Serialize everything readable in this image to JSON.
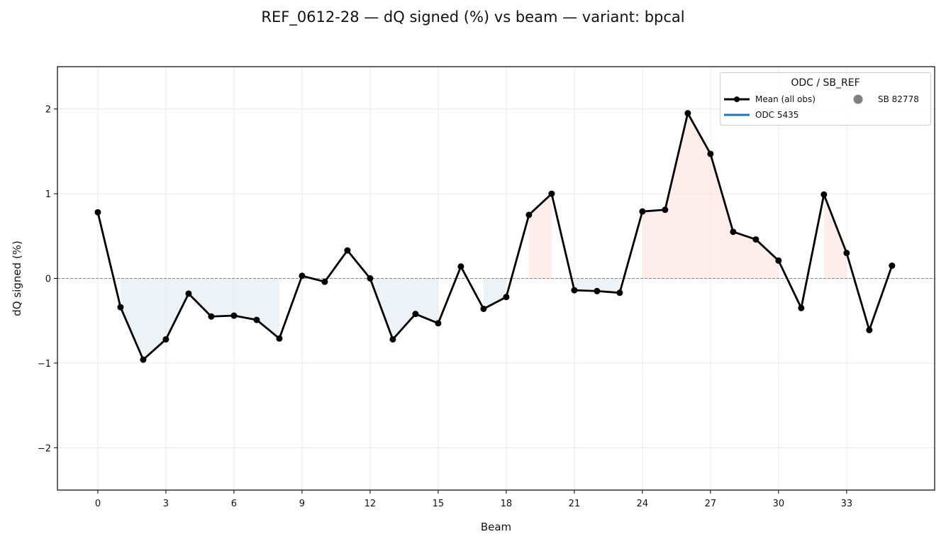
{
  "chart_data": {
    "type": "line",
    "title": "REF_0612-28  —  dQ signed (%) vs beam  —  variant: bpcal",
    "xlabel": "Beam",
    "ylabel": "dQ signed (%)",
    "xlim": [
      -1.78,
      36.88
    ],
    "ylim": [
      -2.5,
      2.5
    ],
    "xticks": [
      0,
      3,
      6,
      9,
      12,
      15,
      18,
      21,
      24,
      27,
      30,
      33
    ],
    "yticks": [
      -2,
      -1,
      0,
      1,
      2
    ],
    "ytick_labels": [
      "−2",
      "−1",
      "0",
      "1",
      "2"
    ],
    "grid": true,
    "legend_placement": "top-right",
    "legend": {
      "title": "ODC / SB_REF",
      "entries": [
        "Mean (all obs)",
        "ODC 5435",
        "SB 82778"
      ]
    },
    "series": [
      {
        "name": "Mean (all obs)",
        "color": "#000000",
        "x": [
          0,
          1,
          2,
          3,
          4,
          5,
          6,
          7,
          8,
          9,
          10,
          11,
          12,
          13,
          14,
          15,
          16,
          17,
          18,
          19,
          20,
          21,
          22,
          23,
          24,
          25,
          26,
          27,
          28,
          29,
          30,
          31,
          32,
          33,
          34,
          35
        ],
        "values": [
          0.78,
          -0.34,
          -0.96,
          -0.72,
          -0.18,
          -0.45,
          -0.44,
          -0.49,
          -0.71,
          0.03,
          -0.04,
          0.33,
          0.0,
          -0.72,
          -0.42,
          -0.53,
          0.14,
          -0.36,
          -0.22,
          0.75,
          1.0,
          -0.14,
          -0.15,
          -0.17,
          0.79,
          0.81,
          1.95,
          1.47,
          0.55,
          0.46,
          0.21,
          -0.35,
          0.99,
          0.3,
          -0.61,
          0.15
        ]
      }
    ],
    "colors": {
      "positive_fill": "#fbe3df",
      "negative_fill": "#dfe9f0",
      "odc_line": "#1f77b4",
      "sb_marker": "#808080"
    }
  }
}
